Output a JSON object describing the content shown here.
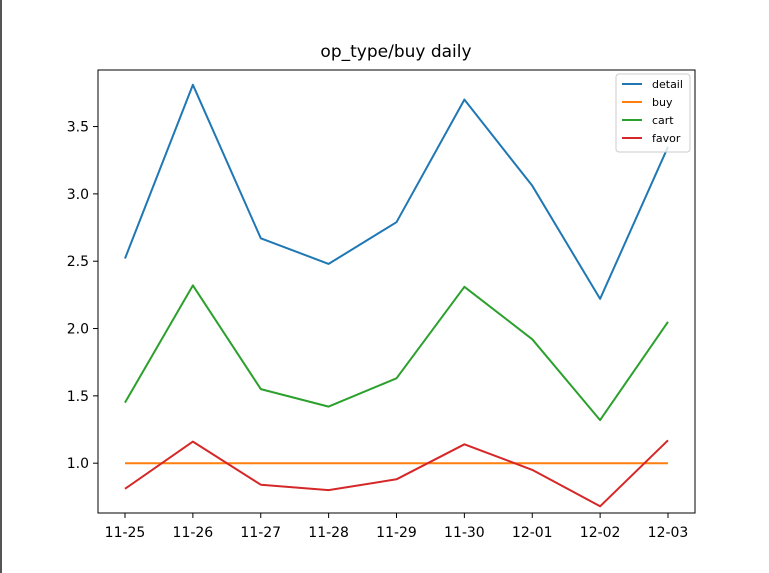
{
  "chart_data": {
    "type": "line",
    "title": "op_type/buy daily",
    "xlabel": "",
    "ylabel": "",
    "categories": [
      "11-25",
      "11-26",
      "11-27",
      "11-28",
      "11-29",
      "11-30",
      "12-01",
      "12-02",
      "12-03"
    ],
    "ylim": [
      0.63,
      3.92
    ],
    "yticks": [
      1.0,
      1.5,
      2.0,
      2.5,
      3.0,
      3.5
    ],
    "ytick_labels": [
      "1.0",
      "1.5",
      "2.0",
      "2.5",
      "3.0",
      "3.5"
    ],
    "grid": false,
    "legend_position": "top-right",
    "series": [
      {
        "name": "detail",
        "color": "#1f77b4",
        "values": [
          2.52,
          3.81,
          2.67,
          2.48,
          2.79,
          3.7,
          3.06,
          2.22,
          3.35
        ]
      },
      {
        "name": "buy",
        "color": "#ff7f0e",
        "values": [
          1.0,
          1.0,
          1.0,
          1.0,
          1.0,
          1.0,
          1.0,
          1.0,
          1.0
        ]
      },
      {
        "name": "cart",
        "color": "#2ca02c",
        "values": [
          1.45,
          2.32,
          1.55,
          1.42,
          1.63,
          2.31,
          1.92,
          1.32,
          2.05
        ]
      },
      {
        "name": "favor",
        "color": "#d62728",
        "values": [
          0.81,
          1.16,
          0.84,
          0.8,
          0.88,
          1.14,
          0.95,
          0.68,
          1.17
        ]
      }
    ]
  }
}
